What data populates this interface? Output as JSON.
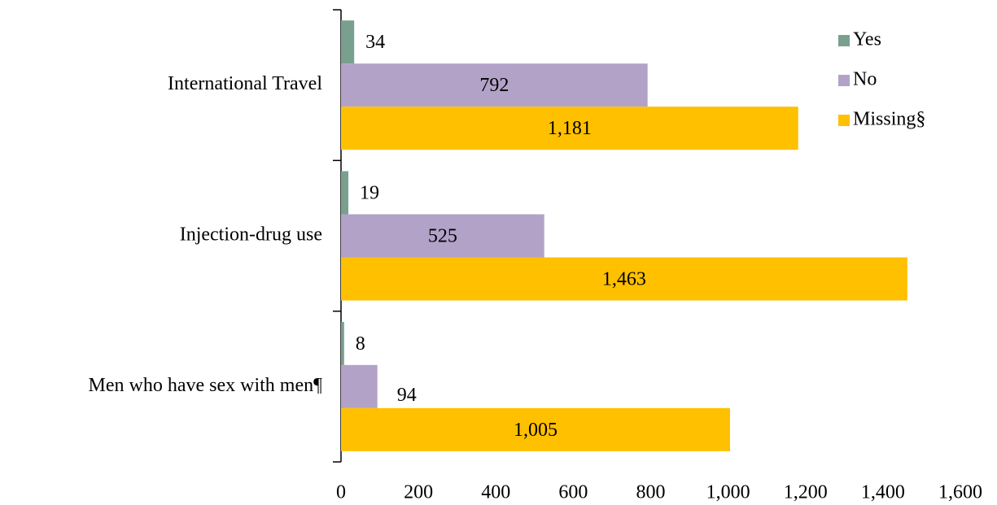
{
  "chart_data": {
    "type": "hbar",
    "categories": [
      "International Travel",
      "Injection-drug use",
      "Men who have sex with men¶"
    ],
    "series": [
      {
        "name": "Yes",
        "color": "#79a08e",
        "values": [
          34,
          19,
          8
        ]
      },
      {
        "name": "No",
        "color": "#b2a2c8",
        "values": [
          792,
          525,
          94
        ]
      },
      {
        "name": "Missing§",
        "color": "#ffc000",
        "values": [
          1181,
          1463,
          1005
        ],
        "value_labels": [
          "1,181",
          "1,463",
          "1,005"
        ]
      }
    ],
    "xlim": [
      0,
      1600
    ],
    "xticks": [
      0,
      200,
      400,
      600,
      800,
      {
        "value": 1000,
        "label": "1,000"
      },
      {
        "value": 1200,
        "label": "1,200"
      },
      {
        "value": 1400,
        "label": "1,400"
      },
      {
        "value": 1600,
        "label": "1,600"
      }
    ],
    "legend": "top-right"
  }
}
